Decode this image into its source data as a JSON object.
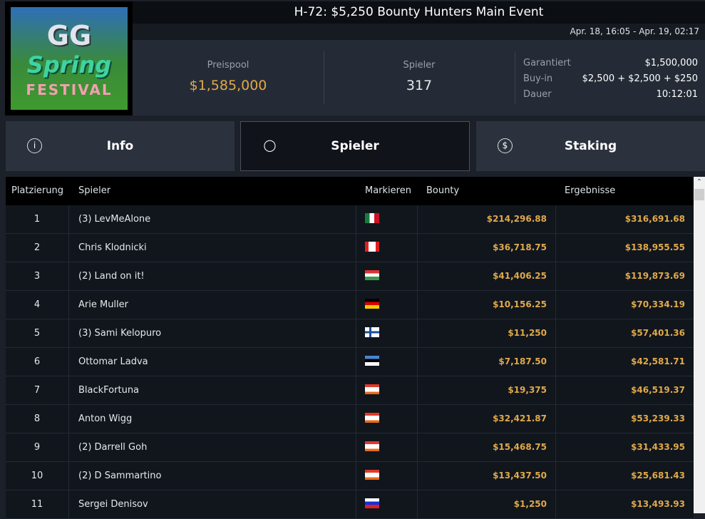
{
  "logo": {
    "text": "GG Spring Festival"
  },
  "header": {
    "title": "H-72: $5,250 Bounty Hunters Main Event",
    "dates": "Apr. 18, 16:05 - Apr. 19, 02:17"
  },
  "stats": {
    "prizepool_label": "Preispool",
    "prizepool": "$1,585,000",
    "players_label": "Spieler",
    "players": "317",
    "guaranteed_label": "Garantiert",
    "guaranteed": "$1,500,000",
    "buyin_label": "Buy-in",
    "buyin": "$2,500 + $2,500 + $250",
    "duration_label": "Dauer",
    "duration": "10:12:01"
  },
  "tabs": [
    {
      "label": "Info",
      "icon": "info-icon"
    },
    {
      "label": "Spieler",
      "icon": "user-icon",
      "active": true
    },
    {
      "label": "Staking",
      "icon": "dollar-circle-icon"
    }
  ],
  "colors": {
    "accent": "#e0a94a"
  },
  "table": {
    "headers": [
      "Platzierung",
      "Spieler",
      "Markieren",
      "Bounty",
      "Ergebnisse"
    ],
    "rows": [
      {
        "place": "1",
        "player": "(3) LevMeAlone",
        "flag": "mx",
        "bounty": "$214,296.88",
        "result": "$316,691.68"
      },
      {
        "place": "2",
        "player": "Chris Klodnicki",
        "flag": "ca",
        "bounty": "$36,718.75",
        "result": "$138,955.55"
      },
      {
        "place": "3",
        "player": "(2) Land on it!",
        "flag": "hu",
        "bounty": "$41,406.25",
        "result": "$119,873.69"
      },
      {
        "place": "4",
        "player": "Arie Muller",
        "flag": "de",
        "bounty": "$10,156.25",
        "result": "$70,334.19"
      },
      {
        "place": "5",
        "player": "(3) Sami Kelopuro",
        "flag": "fi",
        "bounty": "$11,250",
        "result": "$57,401.36"
      },
      {
        "place": "6",
        "player": "Ottomar Ladva",
        "flag": "ee",
        "bounty": "$7,187.50",
        "result": "$42,581.71"
      },
      {
        "place": "7",
        "player": "BlackFortuna",
        "flag": "at",
        "bounty": "$19,375",
        "result": "$46,519.37"
      },
      {
        "place": "8",
        "player": "Anton Wigg",
        "flag": "at",
        "bounty": "$32,421.87",
        "result": "$53,239.33"
      },
      {
        "place": "9",
        "player": "(2) Darrell Goh",
        "flag": "at",
        "bounty": "$15,468.75",
        "result": "$31,433.95"
      },
      {
        "place": "10",
        "player": "(2) D Sammartino",
        "flag": "at",
        "bounty": "$13,437.50",
        "result": "$25,681.43"
      },
      {
        "place": "11",
        "player": "Sergei Denisov",
        "flag": "ru",
        "bounty": "$1,250",
        "result": "$13,493.93"
      }
    ]
  }
}
